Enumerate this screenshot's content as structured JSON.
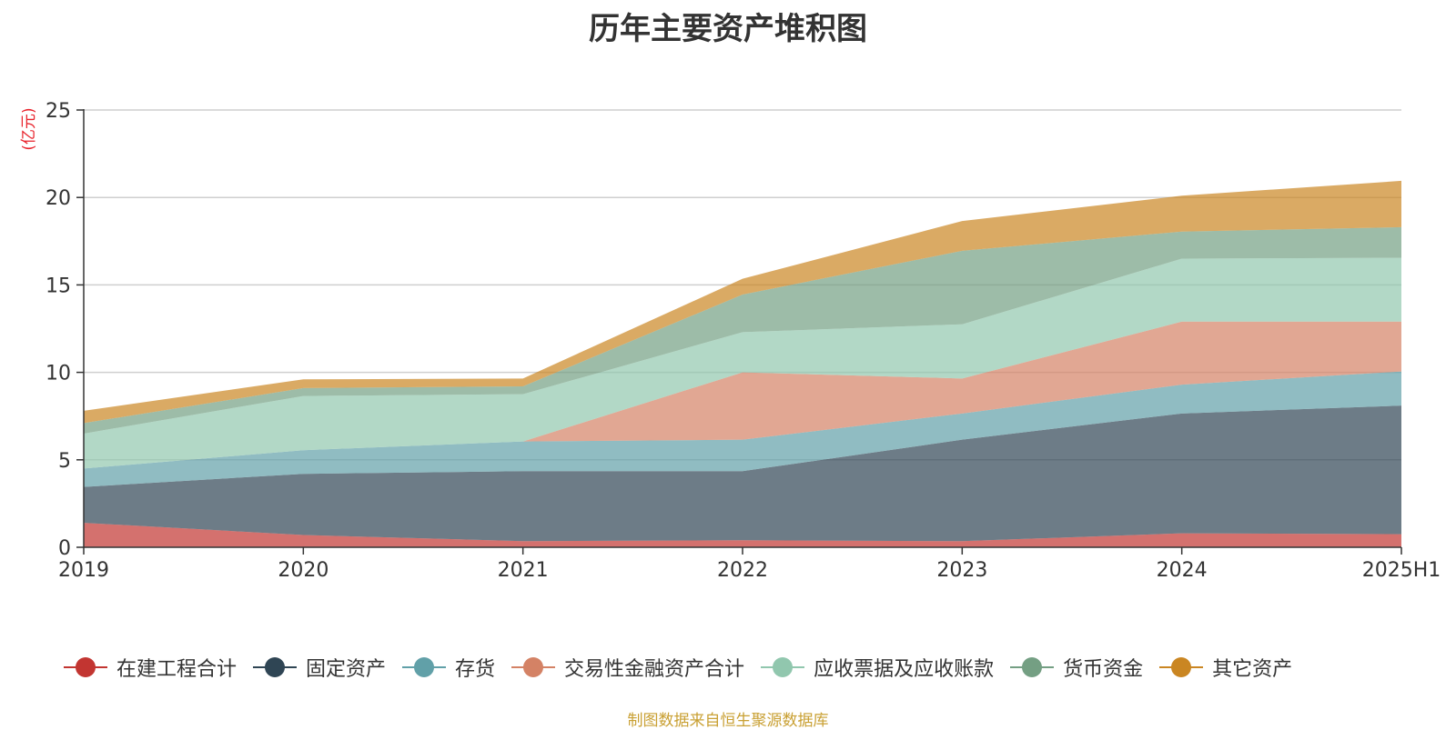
{
  "title": "历年主要资产堆积图",
  "source_note": "制图数据来自恒生聚源数据库",
  "chart_data": {
    "type": "area",
    "stacked": true,
    "title": "历年主要资产堆积图",
    "ylabel": "(亿元)",
    "xlabel": "",
    "categories": [
      "2019",
      "2020",
      "2021",
      "2022",
      "2023",
      "2024",
      "2025H1"
    ],
    "ylim": [
      0,
      25
    ],
    "yticks": [
      0,
      5,
      10,
      15,
      20,
      25
    ],
    "grid": true,
    "legend_position": "bottom",
    "series": [
      {
        "name": "在建工程合计",
        "color": "#c23531",
        "values": [
          1.4,
          0.7,
          0.35,
          0.4,
          0.35,
          0.8,
          0.75
        ]
      },
      {
        "name": "固定资产",
        "color": "#2f4554",
        "values": [
          2.05,
          3.5,
          4.0,
          3.95,
          5.8,
          6.85,
          7.35
        ]
      },
      {
        "name": "存货",
        "color": "#61a0a8",
        "values": [
          1.05,
          1.35,
          1.7,
          1.8,
          1.5,
          1.65,
          1.95
        ]
      },
      {
        "name": "交易性金融资产合计",
        "color": "#d48265",
        "values": [
          0,
          0,
          0,
          3.85,
          2.0,
          3.6,
          2.85
        ]
      },
      {
        "name": "应收票据及应收账款",
        "color": "#91c7ae",
        "values": [
          2.0,
          3.1,
          2.7,
          2.3,
          3.1,
          3.6,
          3.65
        ]
      },
      {
        "name": "货币资金",
        "color": "#749f83",
        "values": [
          0.6,
          0.45,
          0.45,
          2.15,
          4.2,
          1.55,
          1.75
        ]
      },
      {
        "name": "其它资产",
        "color": "#ca8622",
        "values": [
          0.7,
          0.5,
          0.45,
          0.9,
          1.7,
          2.05,
          2.65
        ]
      }
    ]
  }
}
